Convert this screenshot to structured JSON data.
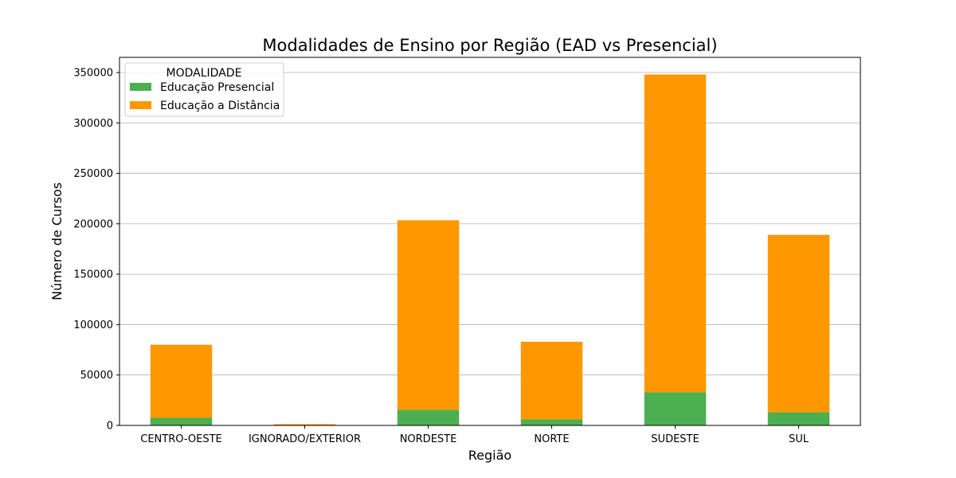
{
  "chart_data": {
    "type": "bar",
    "stacked": true,
    "title": "Modalidades de Ensino por Região (EAD vs Presencial)",
    "xlabel": "Região",
    "ylabel": "Número de Cursos",
    "ylim": [
      0,
      365000
    ],
    "yticks": [
      0,
      50000,
      100000,
      150000,
      200000,
      250000,
      300000,
      350000
    ],
    "grid": "y",
    "categories": [
      "CENTRO-OESTE",
      "IGNORADO/EXTERIOR",
      "NORDESTE",
      "NORTE",
      "SUDESTE",
      "SUL"
    ],
    "legend": {
      "title": "MODALIDADE",
      "position": "upper-left"
    },
    "series": [
      {
        "name": "Educação Presencial",
        "color": "#4caf50",
        "values": [
          7500,
          300,
          15500,
          6000,
          33000,
          13000
        ]
      },
      {
        "name": "Educação a Distância",
        "color": "#ff9800",
        "values": [
          72500,
          900,
          188000,
          77000,
          315000,
          176000
        ]
      }
    ]
  }
}
